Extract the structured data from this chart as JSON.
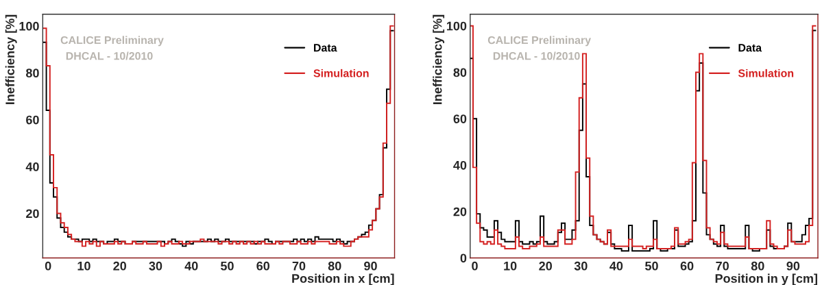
{
  "chart_data": [
    {
      "type": "histogram",
      "xlabel": "Position in x [cm]",
      "ylabel": "Inefficiency [%]",
      "annotations": [
        "CALICE Preliminary",
        "DHCAL - 10/2010"
      ],
      "bins": [
        -1.5,
        -0.5,
        0.5,
        1.5,
        2.5,
        3.5,
        4.5,
        5.5,
        6.5,
        7.5,
        8.5,
        9.5,
        10.5,
        11.5,
        12.5,
        13.5,
        14.5,
        15.5,
        16.5,
        17.5,
        18.5,
        19.5,
        20.5,
        21.5,
        22.5,
        23.5,
        24.5,
        25.5,
        26.5,
        27.5,
        28.5,
        29.5,
        30.5,
        31.5,
        32.5,
        33.5,
        34.5,
        35.5,
        36.5,
        37.5,
        38.5,
        39.5,
        40.5,
        41.5,
        42.5,
        43.5,
        44.5,
        45.5,
        46.5,
        47.5,
        48.5,
        49.5,
        50.5,
        51.5,
        52.5,
        53.5,
        54.5,
        55.5,
        56.5,
        57.5,
        58.5,
        59.5,
        60.5,
        61.5,
        62.5,
        63.5,
        64.5,
        65.5,
        66.5,
        67.5,
        68.5,
        69.5,
        70.5,
        71.5,
        72.5,
        73.5,
        74.5,
        75.5,
        76.5,
        77.5,
        78.5,
        79.5,
        80.5,
        81.5,
        82.5,
        83.5,
        84.5,
        85.5,
        86.5,
        87.5,
        88.5,
        89.5,
        90.5,
        91.5,
        92.5,
        93.5,
        94.5,
        95.5,
        96.5
      ],
      "series": [
        {
          "name": "Data",
          "color": "#000000",
          "values": [
            93,
            64,
            33,
            27,
            18,
            14,
            12,
            10,
            9,
            9,
            8,
            9,
            9,
            8,
            9,
            8,
            8,
            7,
            8,
            8,
            9,
            8,
            8,
            7,
            7,
            8,
            8,
            8,
            8,
            8,
            8,
            8,
            8,
            8,
            7,
            8,
            9,
            8,
            7,
            6,
            8,
            7,
            8,
            8,
            8,
            8,
            9,
            8,
            9,
            8,
            8,
            9,
            8,
            8,
            8,
            8,
            8,
            8,
            8,
            7,
            8,
            8,
            9,
            8,
            7,
            8,
            8,
            8,
            8,
            8,
            9,
            8,
            9,
            8,
            9,
            8,
            10,
            9,
            9,
            9,
            9,
            8,
            9,
            8,
            7,
            8,
            8,
            9,
            10,
            11,
            12,
            15,
            17,
            22,
            28,
            48,
            73,
            98
          ]
        },
        {
          "name": "Simulation",
          "color": "#d42020",
          "values": [
            99,
            83,
            45,
            31,
            20,
            16,
            14,
            11,
            9,
            8,
            8,
            6,
            8,
            7,
            8,
            6,
            8,
            7,
            7,
            7,
            8,
            7,
            8,
            7,
            7,
            8,
            7,
            7,
            8,
            7,
            7,
            7,
            8,
            6,
            7,
            8,
            7,
            7,
            8,
            7,
            7,
            8,
            8,
            8,
            9,
            8,
            8,
            8,
            8,
            7,
            8,
            8,
            7,
            8,
            7,
            8,
            7,
            8,
            7,
            8,
            7,
            8,
            7,
            7,
            7,
            8,
            7,
            8,
            8,
            7,
            7,
            8,
            7,
            7,
            8,
            7,
            8,
            8,
            8,
            8,
            7,
            7,
            8,
            7,
            6,
            6,
            8,
            9,
            10,
            10,
            10,
            13,
            17,
            22,
            27,
            50,
            67,
            100
          ]
        }
      ],
      "xlim": [
        -1.5,
        96.7
      ],
      "ylim": [
        1,
        105
      ],
      "xticks": [
        0,
        10,
        20,
        30,
        40,
        50,
        60,
        70,
        80,
        90
      ],
      "yticks": [
        20,
        40,
        60,
        80,
        100
      ],
      "legend": "top right",
      "grid": false
    },
    {
      "type": "histogram",
      "xlabel": "Position in y [cm]",
      "ylabel": "Inefficiency [%]",
      "annotations": [
        "CALICE Preliminary",
        "DHCAL - 10/2010"
      ],
      "bins": [
        -1.5,
        -0.5,
        0.5,
        1.5,
        2.5,
        3.5,
        4.5,
        5.5,
        6.5,
        7.5,
        8.5,
        9.5,
        10.5,
        11.5,
        12.5,
        13.5,
        14.5,
        15.5,
        16.5,
        17.5,
        18.5,
        19.5,
        20.5,
        21.5,
        22.5,
        23.5,
        24.5,
        25.5,
        26.5,
        27.5,
        28.5,
        29.5,
        30.5,
        31.5,
        32.5,
        33.5,
        34.5,
        35.5,
        36.5,
        37.5,
        38.5,
        39.5,
        40.5,
        41.5,
        42.5,
        43.5,
        44.5,
        45.5,
        46.5,
        47.5,
        48.5,
        49.5,
        50.5,
        51.5,
        52.5,
        53.5,
        54.5,
        55.5,
        56.5,
        57.5,
        58.5,
        59.5,
        60.5,
        61.5,
        62.5,
        63.5,
        64.5,
        65.5,
        66.5,
        67.5,
        68.5,
        69.5,
        70.5,
        71.5,
        72.5,
        73.5,
        74.5,
        75.5,
        76.5,
        77.5,
        78.5,
        79.5,
        80.5,
        81.5,
        82.5,
        83.5,
        84.5,
        85.5,
        86.5,
        87.5,
        88.5,
        89.5,
        90.5,
        91.5,
        92.5,
        93.5,
        94.5,
        95.5,
        96.5
      ],
      "series": [
        {
          "name": "Data",
          "color": "#000000",
          "values": [
            86,
            60,
            19,
            13,
            12,
            9,
            9,
            16,
            11,
            8,
            7,
            7,
            7,
            16,
            7,
            6,
            6,
            7,
            6,
            7,
            18,
            7,
            6,
            6,
            7,
            11,
            15,
            8,
            8,
            12,
            16,
            55,
            75,
            35,
            14,
            10,
            8,
            7,
            6,
            11,
            6,
            4,
            4,
            3,
            3,
            14,
            3,
            3,
            3,
            3,
            3,
            4,
            16,
            4,
            3,
            3,
            4,
            4,
            12,
            5,
            5,
            6,
            7,
            16,
            72,
            84,
            28,
            10,
            8,
            6,
            5,
            14,
            5,
            4,
            4,
            4,
            4,
            4,
            14,
            4,
            3,
            3,
            4,
            4,
            12,
            5,
            4,
            4,
            4,
            5,
            15,
            7,
            7,
            7,
            10,
            14,
            17,
            98
          ]
        },
        {
          "name": "Simulation",
          "color": "#d42020",
          "values": [
            100,
            39,
            15,
            7,
            6,
            7,
            6,
            12,
            6,
            5,
            4,
            4,
            4,
            9,
            5,
            4,
            4,
            5,
            5,
            6,
            9,
            5,
            5,
            5,
            5,
            12,
            12,
            6,
            6,
            8,
            37,
            69,
            88,
            43,
            18,
            10,
            8,
            7,
            6,
            12,
            5,
            5,
            5,
            5,
            5,
            8,
            5,
            5,
            5,
            4,
            5,
            5,
            8,
            4,
            4,
            4,
            4,
            5,
            13,
            6,
            6,
            7,
            8,
            41,
            80,
            88,
            42,
            13,
            8,
            7,
            6,
            11,
            6,
            5,
            5,
            5,
            5,
            5,
            9,
            4,
            4,
            4,
            4,
            4,
            16,
            6,
            5,
            4,
            4,
            5,
            12,
            7,
            6,
            6,
            6,
            7,
            14,
            100
          ]
        }
      ],
      "xlim": [
        -1.3,
        97
      ],
      "ylim": [
        0,
        105
      ],
      "xticks": [
        0,
        10,
        20,
        30,
        40,
        50,
        60,
        70,
        80,
        90
      ],
      "yticks": [
        0,
        20,
        40,
        60,
        80,
        100
      ],
      "legend": "top right",
      "grid": false
    }
  ]
}
